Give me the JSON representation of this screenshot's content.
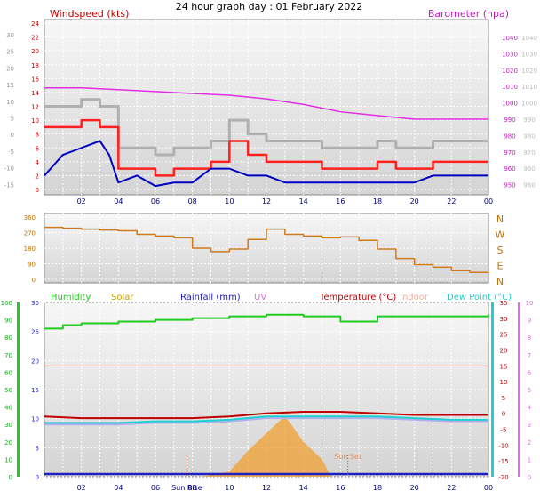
{
  "title": "24 hour graph day : 01 February 2022",
  "colors": {
    "wind": "#e00000",
    "gust": "#ff2020",
    "dir": "#d07a20",
    "baro": "#e030e0",
    "humidity": "#20cc20",
    "solar": "#c8a000",
    "rain": "#2020c0",
    "uv": "#e070e0",
    "temp": "#c00000",
    "indoor": "#f0b0a0",
    "dew": "#20d0d0",
    "grey": "#b0b0b0",
    "windLine": "#0000c0",
    "feels": "#b0b0f0",
    "sun": "#f0a030"
  },
  "x_ticks": [
    "02",
    "04",
    "06",
    "08",
    "10",
    "12",
    "14",
    "16",
    "18",
    "20",
    "22",
    "00"
  ],
  "chart_data": [
    {
      "type": "line",
      "title": "24 hour graph day : 01 February 2022",
      "legend": [
        "Windspeed (kts)",
        "Barometer (hpa)"
      ],
      "yleft_ticks": [
        "24",
        "22",
        "20",
        "18",
        "16",
        "14",
        "12",
        "10",
        "8",
        "6",
        "4",
        "2",
        "0"
      ],
      "yleft_outer_ticks": [
        "30",
        "25",
        "20",
        "15",
        "10",
        "5",
        "0",
        "-5",
        "-10",
        "-15"
      ],
      "yright_ticks": [
        "1040",
        "1030",
        "1020",
        "1010",
        "1000",
        "990",
        "980",
        "970",
        "960",
        "950"
      ],
      "yright_outer_ticks": [
        "1040",
        "1030",
        "1020",
        "1010",
        "1000",
        "990",
        "980",
        "970",
        "960",
        "980"
      ],
      "ylim_wind": [
        0,
        24
      ],
      "ylim_baro": [
        950,
        1045
      ],
      "series": [
        {
          "name": "Barometer (hpa)",
          "x": [
            0,
            2,
            4,
            6,
            8,
            10,
            12,
            14,
            16,
            18,
            20,
            22,
            24
          ],
          "values": [
            1008,
            1008,
            1007,
            1006,
            1005,
            1004,
            1002,
            999,
            995,
            993,
            991,
            991,
            991
          ]
        },
        {
          "name": "Windspeed (kts)",
          "x": [
            0,
            1,
            2,
            3,
            3.5,
            4,
            5,
            6,
            7,
            8,
            9,
            10,
            11,
            12,
            13,
            14,
            15,
            16,
            17,
            18,
            19,
            20,
            21,
            22,
            23,
            24
          ],
          "values": [
            2,
            5,
            6,
            7,
            5,
            1,
            2,
            0.5,
            1,
            1,
            3,
            3,
            2,
            2,
            1,
            1,
            1,
            1,
            1,
            1,
            1,
            1,
            2,
            2,
            2,
            2
          ]
        },
        {
          "name": "Gust",
          "x": [
            0,
            1,
            2,
            3,
            4,
            5,
            6,
            7,
            8,
            9,
            10,
            11,
            12,
            13,
            14,
            15,
            16,
            17,
            18,
            19,
            20,
            21,
            22,
            23,
            24
          ],
          "values": [
            9,
            9,
            10,
            9,
            3,
            3,
            2,
            3,
            3,
            4,
            7,
            5,
            4,
            4,
            4,
            3,
            3,
            3,
            4,
            3,
            3,
            4,
            4,
            4,
            4
          ]
        }
      ]
    },
    {
      "type": "line",
      "ylabels_left": [
        "360",
        "270",
        "180",
        "90",
        "0"
      ],
      "ylabels_right": [
        "N",
        "W",
        "S",
        "E",
        "N"
      ],
      "ylim": [
        0,
        360
      ],
      "series": [
        {
          "name": "Wind direction",
          "x": [
            0,
            1,
            2,
            3,
            4,
            5,
            6,
            7,
            8,
            9,
            10,
            11,
            12,
            13,
            14,
            15,
            16,
            17,
            18,
            19,
            20,
            21,
            22,
            23,
            24
          ],
          "values": [
            300,
            295,
            290,
            285,
            280,
            260,
            250,
            240,
            180,
            160,
            175,
            230,
            290,
            260,
            250,
            240,
            245,
            225,
            175,
            120,
            85,
            70,
            50,
            40,
            35
          ]
        }
      ]
    },
    {
      "type": "line",
      "legend": [
        "Humidity",
        "Solar",
        "Rainfall (mm)",
        "UV",
        "Temperature (°C)",
        "Indoor",
        "Dew Point (°C)"
      ],
      "yleft_outer_ticks": [
        "100",
        "90",
        "80",
        "70",
        "60",
        "50",
        "40",
        "30",
        "20",
        "10",
        "0"
      ],
      "yleft_inner_ticks": [
        "30",
        "25",
        "20",
        "15",
        "10",
        "5",
        "0"
      ],
      "yright_inner_ticks": [
        "35",
        "30",
        "25",
        "20",
        "15",
        "10",
        "5",
        "0",
        "-5",
        "-10",
        "-15",
        "-20"
      ],
      "yright_outer_ticks": [
        "10",
        "9",
        "8",
        "7",
        "6",
        "5",
        "4",
        "3",
        "2",
        "1",
        "0"
      ],
      "annotations": [
        "Sun Rise",
        "Sun Set"
      ],
      "series": [
        {
          "name": "Humidity",
          "x": [
            0,
            1,
            1.3,
            2,
            4,
            6,
            8,
            10,
            12,
            14,
            16,
            18,
            20,
            22,
            24
          ],
          "values": [
            85,
            87,
            87,
            88,
            89,
            90,
            91,
            92,
            93,
            92,
            89,
            92,
            92,
            92,
            93
          ]
        },
        {
          "name": "Temperature (°C)",
          "x": [
            0,
            2,
            4,
            6,
            8,
            10,
            12,
            14,
            16,
            18,
            20,
            22,
            24
          ],
          "values": [
            -1,
            -1.5,
            -1.5,
            -1.5,
            -1.5,
            -1,
            0,
            0.5,
            0.5,
            0,
            -0.5,
            -0.5,
            -0.5
          ]
        },
        {
          "name": "Dew Point (°C)",
          "x": [
            0,
            2,
            4,
            6,
            8,
            10,
            12,
            14,
            16,
            18,
            20,
            22,
            24
          ],
          "values": [
            -3,
            -3,
            -3,
            -2.5,
            -2.5,
            -2,
            -1,
            -1,
            -1,
            -1,
            -1.5,
            -2,
            -2
          ]
        },
        {
          "name": "Indoor",
          "x": [
            0,
            24
          ],
          "values": [
            15,
            15
          ]
        },
        {
          "name": "Rainfall (mm)",
          "x": [
            0,
            24
          ],
          "values": [
            0,
            0
          ]
        },
        {
          "name": "Solar",
          "x": [
            8.5,
            10,
            11,
            12,
            12.5,
            13,
            14,
            15,
            15.5
          ],
          "values": [
            0,
            0.3,
            1.5,
            2.5,
            3,
            3.5,
            2,
            1,
            0
          ]
        }
      ]
    }
  ]
}
